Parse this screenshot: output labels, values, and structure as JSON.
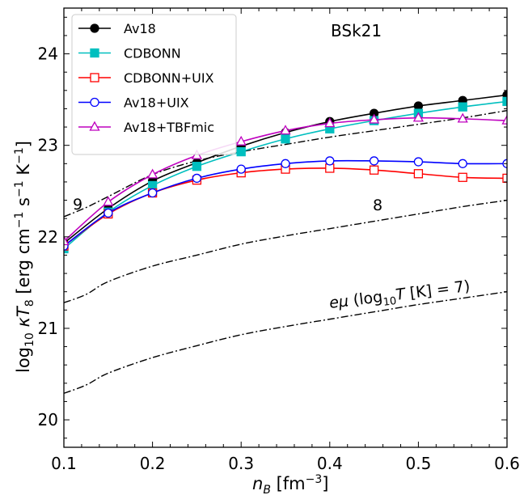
{
  "chart_data": {
    "type": "line",
    "title": "BSk21",
    "xlabel": "n_B [fm^-3]",
    "ylabel": "log10 κT8 [erg cm^-1 s^-1 K^-1]",
    "xlim": [
      0.1,
      0.6
    ],
    "ylim": [
      19.7,
      24.5
    ],
    "x_ticks": [
      "0.1",
      "0.2",
      "0.3",
      "0.4",
      "0.5",
      "0.6"
    ],
    "y_ticks": [
      "20",
      "21",
      "22",
      "23",
      "24"
    ],
    "legend_placement": "top-left",
    "series": [
      {
        "name": "Av18",
        "color": "#000000",
        "marker": "circle-filled",
        "x": [
          0.1,
          0.15,
          0.2,
          0.25,
          0.3,
          0.35,
          0.4,
          0.45,
          0.5,
          0.55,
          0.6
        ],
        "y": [
          21.93,
          22.31,
          22.61,
          22.81,
          22.99,
          23.14,
          23.26,
          23.35,
          23.43,
          23.49,
          23.55
        ]
      },
      {
        "name": "CDBONN",
        "color": "#00bfbf",
        "marker": "square-filled",
        "x": [
          0.1,
          0.15,
          0.2,
          0.25,
          0.3,
          0.35,
          0.4,
          0.45,
          0.5,
          0.55,
          0.6
        ],
        "y": [
          21.87,
          22.27,
          22.56,
          22.77,
          22.93,
          23.07,
          23.18,
          23.27,
          23.35,
          23.42,
          23.48
        ]
      },
      {
        "name": "CDBONN+UIX",
        "color": "#ff0000",
        "marker": "square-open",
        "x": [
          0.1,
          0.15,
          0.2,
          0.25,
          0.3,
          0.35,
          0.4,
          0.45,
          0.5,
          0.55,
          0.6
        ],
        "y": [
          21.9,
          22.25,
          22.48,
          22.62,
          22.7,
          22.74,
          22.75,
          22.73,
          22.69,
          22.65,
          22.64
        ]
      },
      {
        "name": "Av18+UIX",
        "color": "#0000ff",
        "marker": "circle-open",
        "x": [
          0.1,
          0.15,
          0.2,
          0.25,
          0.3,
          0.35,
          0.4,
          0.45,
          0.5,
          0.55,
          0.6
        ],
        "y": [
          21.9,
          22.26,
          22.48,
          22.64,
          22.74,
          22.8,
          22.83,
          22.83,
          22.82,
          22.8,
          22.8
        ]
      },
      {
        "name": "Av18+TBFmic",
        "color": "#bf00bf",
        "marker": "triangle-open",
        "x": [
          0.1,
          0.15,
          0.2,
          0.25,
          0.3,
          0.35,
          0.4,
          0.45,
          0.5,
          0.55,
          0.6
        ],
        "y": [
          21.95,
          22.38,
          22.68,
          22.89,
          23.04,
          23.16,
          23.24,
          23.28,
          23.3,
          23.29,
          23.27
        ]
      }
    ],
    "reference_curves": [
      {
        "label": "9",
        "style": "dash-dot",
        "x": [
          0.1,
          0.125,
          0.15,
          0.2,
          0.25,
          0.3,
          0.35,
          0.4,
          0.45,
          0.5,
          0.55,
          0.6
        ],
        "y": [
          22.22,
          22.32,
          22.44,
          22.68,
          22.83,
          22.93,
          23.01,
          23.09,
          23.16,
          23.23,
          23.3,
          23.38
        ]
      },
      {
        "label": "8",
        "style": "dash-dot",
        "x": [
          0.1,
          0.125,
          0.15,
          0.2,
          0.25,
          0.3,
          0.35,
          0.4,
          0.45,
          0.5,
          0.55,
          0.6
        ],
        "y": [
          21.28,
          21.37,
          21.51,
          21.68,
          21.8,
          21.92,
          22.01,
          22.09,
          22.17,
          22.25,
          22.33,
          22.4
        ]
      },
      {
        "label": "eμ (log10 T [K] = 7)",
        "style": "dash-dot",
        "x": [
          0.1,
          0.125,
          0.15,
          0.2,
          0.25,
          0.3,
          0.35,
          0.4,
          0.45,
          0.5,
          0.55,
          0.6
        ],
        "y": [
          20.29,
          20.38,
          20.51,
          20.68,
          20.81,
          20.93,
          21.02,
          21.1,
          21.18,
          21.26,
          21.33,
          21.4
        ]
      }
    ]
  }
}
